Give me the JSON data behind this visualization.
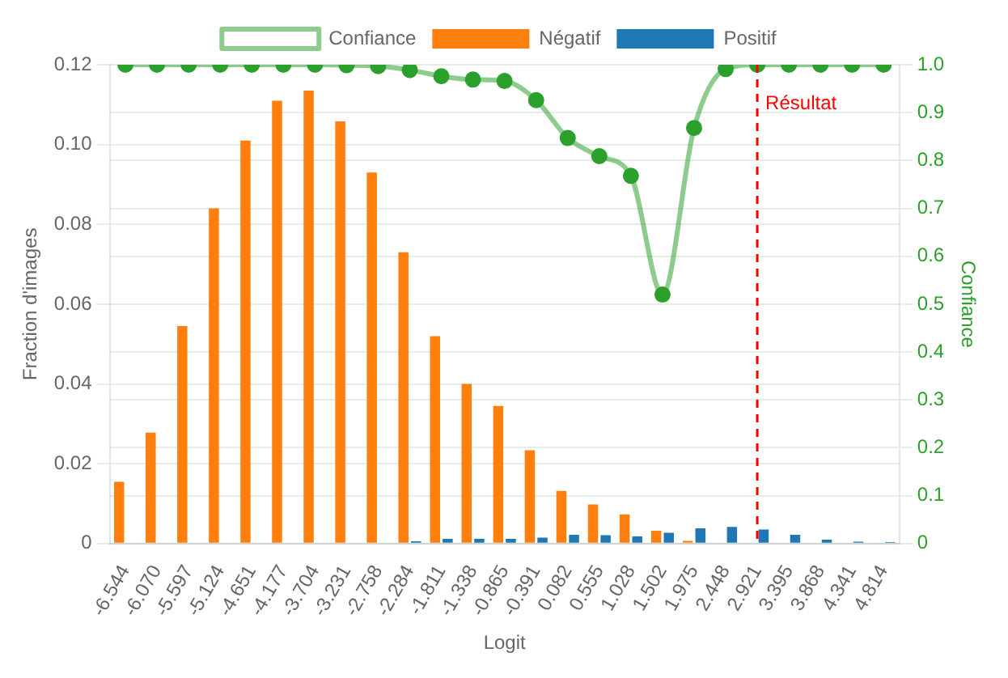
{
  "chart_data": {
    "type": "bar",
    "xlabel": "Logit",
    "ylabel": "Fraction d'images",
    "y2label": "Confiance",
    "categories": [
      "-6.544",
      "-6.070",
      "-5.597",
      "-5.124",
      "-4.651",
      "-4.177",
      "-3.704",
      "-3.231",
      "-2.758",
      "-2.284",
      "-1.811",
      "-1.338",
      "-0.865",
      "-0.391",
      "0.082",
      "0.555",
      "1.028",
      "1.502",
      "1.975",
      "2.448",
      "2.921",
      "3.395",
      "3.868",
      "4.341",
      "4.814"
    ],
    "series": [
      {
        "name": "Confiance",
        "type": "line",
        "axis": "y2",
        "color": "#2ca02c",
        "values": [
          1.0,
          1.0,
          1.0,
          1.0,
          1.0,
          1.0,
          1.0,
          0.999,
          0.997,
          0.989,
          0.976,
          0.969,
          0.966,
          0.926,
          0.847,
          0.809,
          0.768,
          0.52,
          0.868,
          0.991,
          1.0,
          1.0,
          1.0,
          1.0,
          1.0
        ]
      },
      {
        "name": "Négatif",
        "color": "#ff7f0e",
        "values": [
          0.0155,
          0.0278,
          0.0545,
          0.084,
          0.101,
          0.111,
          0.1135,
          0.1058,
          0.093,
          0.073,
          0.052,
          0.04,
          0.0345,
          0.0234,
          0.0132,
          0.0098,
          0.0073,
          0.0032,
          0.0007,
          0,
          0,
          0,
          0,
          0,
          0
        ]
      },
      {
        "name": "Positif",
        "color": "#1f77b4",
        "values": [
          0,
          0,
          0,
          0,
          0,
          0,
          0,
          0,
          0,
          0.0006,
          0.0012,
          0.0012,
          0.0012,
          0.0015,
          0.0022,
          0.0021,
          0.0018,
          0.0027,
          0.0038,
          0.0042,
          0.0035,
          0.0022,
          0.001,
          0.0005,
          0.0004
        ]
      }
    ],
    "ylim": [
      0,
      0.12
    ],
    "yticks": [
      0,
      0.02,
      0.04,
      0.06,
      0.08,
      {
        "value": 0.1,
        "label": "0.10"
      },
      0.12
    ],
    "y2lim": [
      0,
      1
    ],
    "y2ticks": [
      0,
      0.1,
      0.2,
      0.3,
      0.4,
      0.5,
      0.6,
      0.7,
      0.8,
      0.9,
      {
        "value": 1,
        "label": "1.0"
      }
    ],
    "ref_lines": [
      {
        "axis": "x",
        "value": "2.921",
        "label": "Résultat",
        "color": "#ff0000",
        "line_style": "dashed"
      }
    ],
    "grid": "y",
    "legend": "top",
    "marker": "circle"
  }
}
